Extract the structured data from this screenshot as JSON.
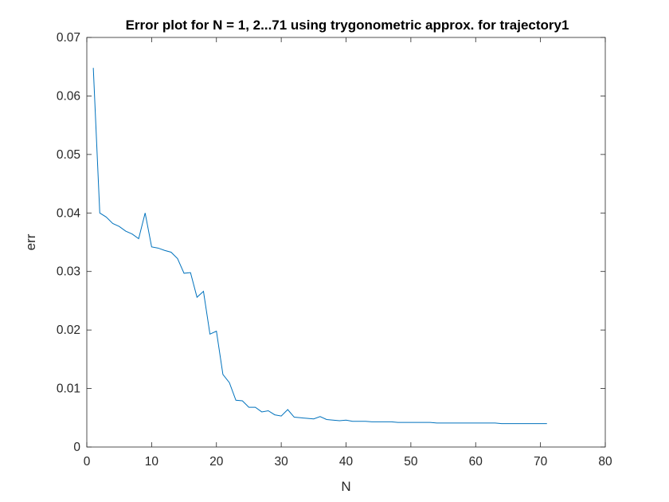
{
  "chart_data": {
    "type": "line",
    "title": "Error plot for N = 1, 2...71 using trygonometric approx. for trajectory1",
    "xlabel": "N",
    "ylabel": "err",
    "xlim": [
      0,
      80
    ],
    "ylim": [
      0,
      0.07
    ],
    "x_ticks": [
      "0",
      "10",
      "20",
      "30",
      "40",
      "50",
      "60",
      "70",
      "80"
    ],
    "y_ticks": [
      "0",
      "0.01",
      "0.02",
      "0.03",
      "0.04",
      "0.05",
      "0.06",
      "0.07"
    ],
    "grid": false,
    "series_color": "#0072BD",
    "series": [
      {
        "x": [
          1,
          2,
          3,
          4,
          5,
          6,
          7,
          8,
          9,
          10,
          11,
          12,
          13,
          14,
          15,
          16,
          17,
          18,
          19,
          20,
          21,
          22,
          23,
          24,
          25,
          26,
          27,
          28,
          29,
          30,
          31,
          32,
          33,
          34,
          35,
          36,
          37,
          38,
          39,
          40,
          41,
          42,
          43,
          44,
          45,
          46,
          47,
          48,
          49,
          50,
          51,
          52,
          53,
          54,
          55,
          56,
          57,
          58,
          59,
          60,
          61,
          62,
          63,
          64,
          65,
          66,
          67,
          68,
          69,
          70,
          71
        ],
        "values": [
          0.0648,
          0.04,
          0.0393,
          0.0382,
          0.0377,
          0.0369,
          0.0364,
          0.0356,
          0.04,
          0.0342,
          0.034,
          0.0336,
          0.0333,
          0.0322,
          0.0297,
          0.0298,
          0.0256,
          0.0266,
          0.0193,
          0.0198,
          0.0124,
          0.011,
          0.008,
          0.0079,
          0.0068,
          0.0068,
          0.006,
          0.0062,
          0.0055,
          0.0053,
          0.0064,
          0.0051,
          0.005,
          0.0049,
          0.0048,
          0.0052,
          0.0047,
          0.0046,
          0.0045,
          0.0046,
          0.0044,
          0.0044,
          0.0044,
          0.0043,
          0.0043,
          0.0043,
          0.0043,
          0.0042,
          0.0042,
          0.0042,
          0.0042,
          0.0042,
          0.0042,
          0.0041,
          0.0041,
          0.0041,
          0.0041,
          0.0041,
          0.0041,
          0.0041,
          0.0041,
          0.0041,
          0.0041,
          0.004,
          0.004,
          0.004,
          0.004,
          0.004,
          0.004,
          0.004,
          0.004
        ]
      }
    ]
  }
}
